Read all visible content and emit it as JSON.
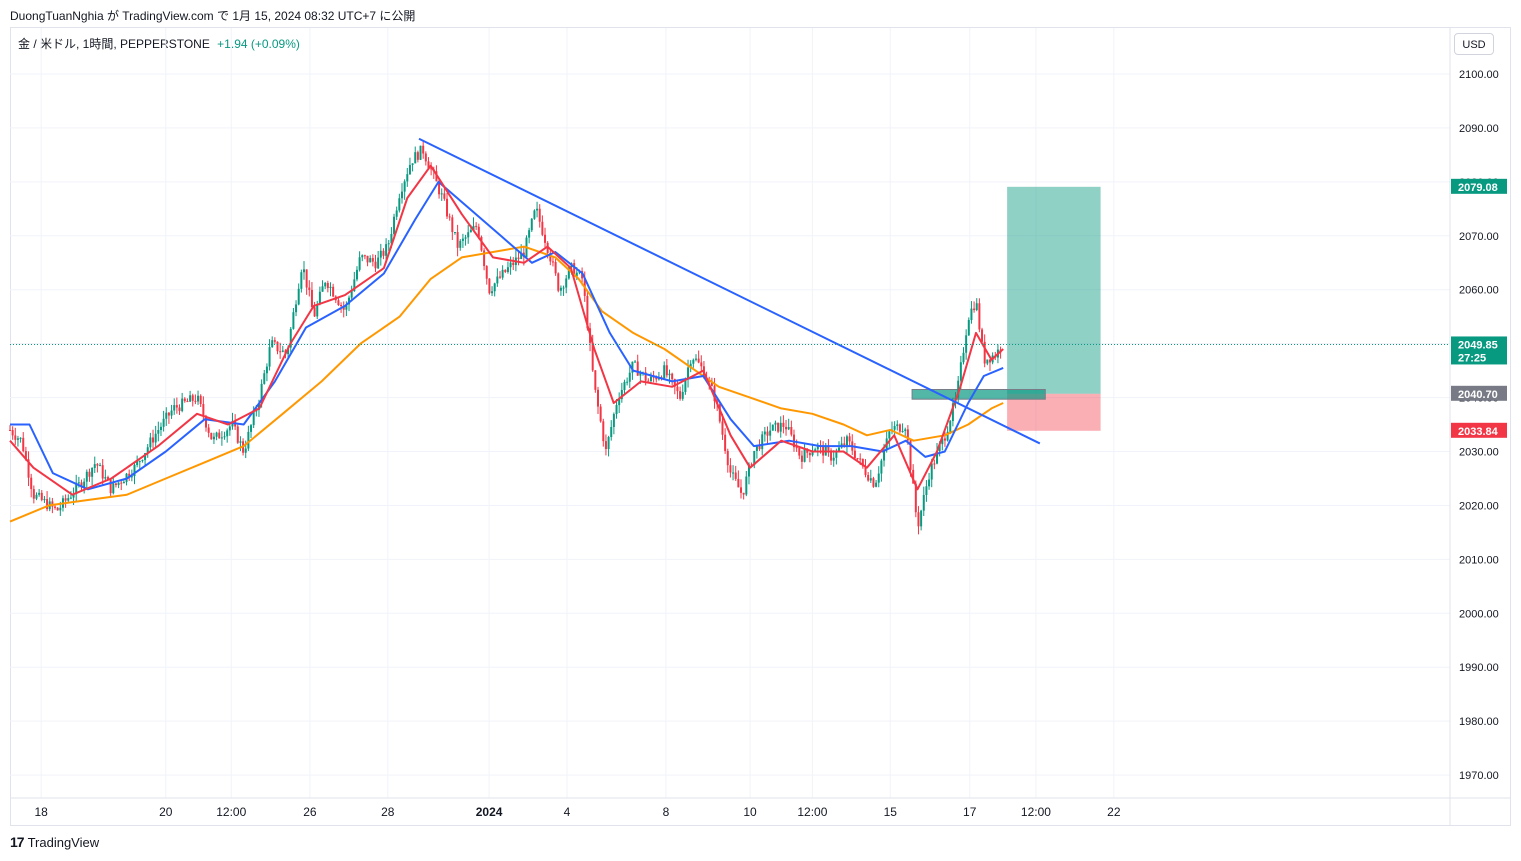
{
  "header": {
    "publish_line": "DuongTuanNghia が TradingView.com で 1月 15, 2024 08:32 UTC+7 に公開"
  },
  "symbol": {
    "name": "金 / 米ドル, 1時間, PEPPERSTONE",
    "change": "+1.94 (+0.09%)"
  },
  "currency_button": "USD",
  "footer": {
    "brand": "TradingView",
    "logo": "17"
  },
  "colors": {
    "up": "#089981",
    "down": "#f23645",
    "ema_fast": "#f23645",
    "ema_mid": "#2962ff",
    "ema_slow": "#ff9800",
    "trendline": "#2962ff",
    "target": "#089981",
    "stop": "#f23645"
  },
  "chart_data": {
    "type": "candlestick",
    "ylim": [
      1965,
      2108
    ],
    "y_ticks": [
      2100,
      2090,
      2080,
      2070,
      2060,
      2050,
      2040,
      2030,
      2020,
      2010,
      2000,
      1990,
      1980,
      1970
    ],
    "y_tick_labels": [
      "2100.00",
      "2090.00",
      "2080.00",
      "2070.00",
      "2060.00",
      "2050.00",
      "2040.00",
      "2030.00",
      "2020.00",
      "2010.00",
      "2000.00",
      "1990.00",
      "1980.00",
      "1970.00"
    ],
    "x_ticks": [
      {
        "label": "18",
        "t": 0.4
      },
      {
        "label": "20",
        "t": 2.0
      },
      {
        "label": "12:00",
        "t": 2.84
      },
      {
        "label": "26",
        "t": 3.85
      },
      {
        "label": "28",
        "t": 4.85
      },
      {
        "label": "2024",
        "t": 6.15,
        "bold": true
      },
      {
        "label": "4",
        "t": 7.15
      },
      {
        "label": "8",
        "t": 8.42
      },
      {
        "label": "10",
        "t": 9.5
      },
      {
        "label": "12:00",
        "t": 10.3
      },
      {
        "label": "15",
        "t": 11.3
      },
      {
        "label": "17",
        "t": 12.32
      },
      {
        "label": "12:00",
        "t": 13.17
      },
      {
        "label": "22",
        "t": 14.17
      }
    ],
    "price_path": [
      [
        0.0,
        2034
      ],
      [
        0.15,
        2032
      ],
      [
        0.3,
        2022
      ],
      [
        0.6,
        2019
      ],
      [
        0.9,
        2024
      ],
      [
        1.1,
        2028
      ],
      [
        1.3,
        2023
      ],
      [
        1.6,
        2027
      ],
      [
        1.9,
        2034
      ],
      [
        2.1,
        2038
      ],
      [
        2.4,
        2040
      ],
      [
        2.6,
        2032
      ],
      [
        2.85,
        2035
      ],
      [
        3.0,
        2030
      ],
      [
        3.2,
        2040
      ],
      [
        3.35,
        2050
      ],
      [
        3.55,
        2048
      ],
      [
        3.75,
        2065
      ],
      [
        3.9,
        2055
      ],
      [
        4.05,
        2062
      ],
      [
        4.3,
        2056
      ],
      [
        4.5,
        2066
      ],
      [
        4.7,
        2065
      ],
      [
        4.85,
        2068
      ],
      [
        5.0,
        2078
      ],
      [
        5.15,
        2084
      ],
      [
        5.3,
        2086
      ],
      [
        5.55,
        2077
      ],
      [
        5.75,
        2068
      ],
      [
        6.0,
        2072
      ],
      [
        6.15,
        2060
      ],
      [
        6.4,
        2064
      ],
      [
        6.6,
        2067
      ],
      [
        6.75,
        2075
      ],
      [
        6.9,
        2068
      ],
      [
        7.05,
        2060
      ],
      [
        7.2,
        2064
      ],
      [
        7.35,
        2062
      ],
      [
        7.5,
        2042
      ],
      [
        7.65,
        2030
      ],
      [
        7.8,
        2040
      ],
      [
        8.0,
        2046
      ],
      [
        8.2,
        2043
      ],
      [
        8.4,
        2045
      ],
      [
        8.6,
        2040
      ],
      [
        8.75,
        2048
      ],
      [
        8.9,
        2045
      ],
      [
        9.05,
        2040
      ],
      [
        9.25,
        2026
      ],
      [
        9.4,
        2022
      ],
      [
        9.55,
        2030
      ],
      [
        9.75,
        2034
      ],
      [
        9.95,
        2035
      ],
      [
        10.15,
        2029
      ],
      [
        10.35,
        2031
      ],
      [
        10.55,
        2029
      ],
      [
        10.75,
        2032
      ],
      [
        10.95,
        2027
      ],
      [
        11.1,
        2024
      ],
      [
        11.3,
        2034
      ],
      [
        11.5,
        2035
      ],
      [
        11.65,
        2016
      ],
      [
        11.8,
        2026
      ],
      [
        12.0,
        2033
      ],
      [
        12.15,
        2040
      ],
      [
        12.3,
        2055
      ],
      [
        12.4,
        2058
      ],
      [
        12.5,
        2047
      ],
      [
        12.65,
        2048
      ],
      [
        12.75,
        2049.85
      ]
    ],
    "ema_fast_path": [
      [
        0.0,
        2032
      ],
      [
        0.3,
        2027
      ],
      [
        0.8,
        2022
      ],
      [
        1.3,
        2025
      ],
      [
        1.9,
        2031
      ],
      [
        2.4,
        2037
      ],
      [
        2.8,
        2035
      ],
      [
        3.2,
        2038
      ],
      [
        3.6,
        2050
      ],
      [
        3.9,
        2057
      ],
      [
        4.3,
        2059
      ],
      [
        4.8,
        2064
      ],
      [
        5.1,
        2077
      ],
      [
        5.4,
        2083
      ],
      [
        5.8,
        2074
      ],
      [
        6.2,
        2066
      ],
      [
        6.6,
        2065
      ],
      [
        6.9,
        2068
      ],
      [
        7.2,
        2064
      ],
      [
        7.5,
        2049
      ],
      [
        7.75,
        2039
      ],
      [
        8.1,
        2043
      ],
      [
        8.5,
        2042
      ],
      [
        8.9,
        2045
      ],
      [
        9.25,
        2033
      ],
      [
        9.5,
        2027
      ],
      [
        9.9,
        2032
      ],
      [
        10.3,
        2030
      ],
      [
        10.7,
        2030
      ],
      [
        11.0,
        2027
      ],
      [
        11.35,
        2033
      ],
      [
        11.65,
        2023
      ],
      [
        11.9,
        2030
      ],
      [
        12.2,
        2042
      ],
      [
        12.4,
        2052
      ],
      [
        12.6,
        2047
      ],
      [
        12.75,
        2049
      ]
    ],
    "ema_mid_path": [
      [
        0.0,
        2035
      ],
      [
        0.25,
        2035
      ],
      [
        0.55,
        2026
      ],
      [
        1.0,
        2023
      ],
      [
        1.5,
        2025
      ],
      [
        2.0,
        2030
      ],
      [
        2.5,
        2036
      ],
      [
        3.0,
        2035
      ],
      [
        3.4,
        2043
      ],
      [
        3.8,
        2053
      ],
      [
        4.3,
        2057
      ],
      [
        4.8,
        2063
      ],
      [
        5.2,
        2073
      ],
      [
        5.5,
        2080
      ],
      [
        5.9,
        2075
      ],
      [
        6.3,
        2070
      ],
      [
        6.7,
        2065
      ],
      [
        7.0,
        2067
      ],
      [
        7.35,
        2063
      ],
      [
        7.7,
        2052
      ],
      [
        8.0,
        2045
      ],
      [
        8.5,
        2043
      ],
      [
        8.9,
        2044
      ],
      [
        9.25,
        2036
      ],
      [
        9.55,
        2031
      ],
      [
        10.0,
        2032
      ],
      [
        10.4,
        2031
      ],
      [
        10.8,
        2031
      ],
      [
        11.2,
        2030
      ],
      [
        11.5,
        2032
      ],
      [
        11.75,
        2029
      ],
      [
        12.0,
        2030
      ],
      [
        12.3,
        2039
      ],
      [
        12.5,
        2044
      ],
      [
        12.75,
        2045.5
      ]
    ],
    "ema_slow_path": [
      [
        0.0,
        2017
      ],
      [
        0.5,
        2020
      ],
      [
        1.0,
        2021
      ],
      [
        1.5,
        2022
      ],
      [
        2.0,
        2025
      ],
      [
        2.5,
        2028
      ],
      [
        3.0,
        2031
      ],
      [
        3.5,
        2037
      ],
      [
        4.0,
        2043
      ],
      [
        4.5,
        2050
      ],
      [
        5.0,
        2055
      ],
      [
        5.4,
        2062
      ],
      [
        5.8,
        2066
      ],
      [
        6.2,
        2067
      ],
      [
        6.6,
        2068
      ],
      [
        7.0,
        2066
      ],
      [
        7.3,
        2062
      ],
      [
        7.6,
        2056
      ],
      [
        8.0,
        2052
      ],
      [
        8.4,
        2049
      ],
      [
        8.8,
        2045
      ],
      [
        9.1,
        2042
      ],
      [
        9.5,
        2040
      ],
      [
        9.9,
        2038
      ],
      [
        10.3,
        2037
      ],
      [
        10.7,
        2035
      ],
      [
        11.0,
        2033
      ],
      [
        11.3,
        2034
      ],
      [
        11.6,
        2032
      ],
      [
        12.0,
        2033
      ],
      [
        12.3,
        2035
      ],
      [
        12.6,
        2038
      ],
      [
        12.75,
        2039
      ]
    ],
    "trendline": [
      [
        5.25,
        2088
      ],
      [
        13.22,
        2031.5
      ]
    ],
    "long_position": {
      "entry": 2040.7,
      "target": 2079.08,
      "stop": 2033.84,
      "t_start": 12.8,
      "t_end": 14.0,
      "entry_label": "2040.70",
      "target_label": "2079.08",
      "stop_label": "2033.84"
    },
    "zone": {
      "price_top": 2041.5,
      "price_bottom": 2039.7,
      "t_start": 11.58,
      "t_end": 13.29
    },
    "last_price": 2049.85,
    "last_price_label": "2049.85",
    "countdown": "27:25"
  }
}
